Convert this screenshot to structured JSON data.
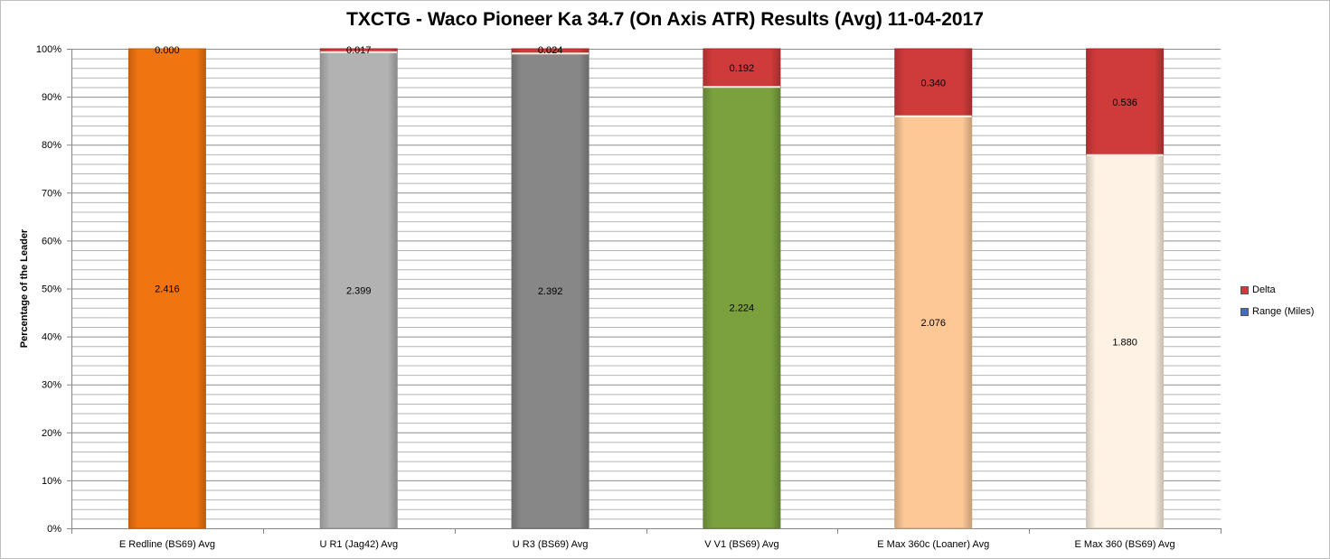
{
  "chart_data": {
    "type": "bar",
    "stacked": "percent",
    "title": "TXCTG - Waco Pioneer Ka 34.7 (On Axis ATR) Results (Avg) 11-04-2017",
    "xlabel": "",
    "ylabel": "Percentage of the Leader",
    "ylim": [
      0,
      100
    ],
    "y_ticks": [
      "0%",
      "10%",
      "20%",
      "30%",
      "40%",
      "50%",
      "60%",
      "70%",
      "80%",
      "90%",
      "100%"
    ],
    "grid": true,
    "legend_position": "right",
    "categories": [
      "E Redline (BS69) Avg",
      "U R1 (Jag42) Avg",
      "U R3 (BS69) Avg",
      "V V1 (BS69) Avg",
      "E Max 360c (Loaner) Avg",
      "E Max 360 (BS69) Avg"
    ],
    "series": [
      {
        "name": "Range (Miles)",
        "values": [
          2.416,
          2.399,
          2.392,
          2.224,
          2.076,
          1.88
        ],
        "labels": [
          "2.416",
          "2.399",
          "2.392",
          "2.224",
          "2.076",
          "1.880"
        ],
        "colors": [
          "#f07510",
          "#b2b2b2",
          "#878787",
          "#7ba03e",
          "#fdc896",
          "#fdf2e3"
        ]
      },
      {
        "name": "Delta",
        "values": [
          0.0,
          0.017,
          0.024,
          0.192,
          0.34,
          0.536
        ],
        "labels": [
          "0.000",
          "0.017",
          "0.024",
          "0.192",
          "0.340",
          "0.536"
        ],
        "color": "#cf3b3b"
      }
    ]
  }
}
